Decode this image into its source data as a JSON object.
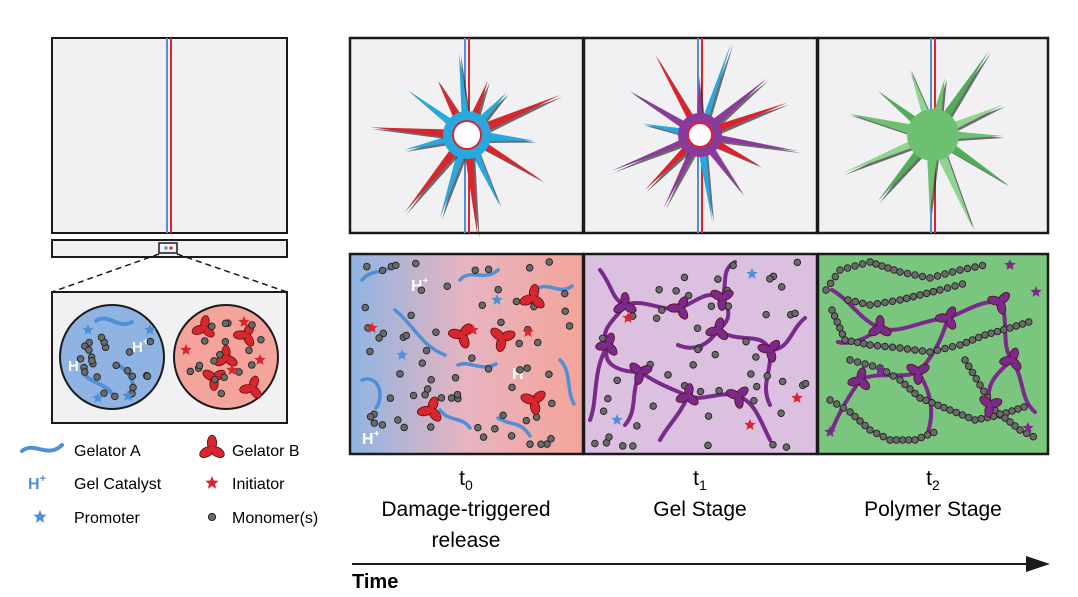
{
  "colors": {
    "blue": "#4f8fd6",
    "red": "#d8262e",
    "purple": "#7a2a8a",
    "green": "#7bc67e",
    "monomer": "#666666",
    "panel_border": "#1a1a1a"
  },
  "legend": {
    "gelator_a": "Gelator A",
    "gelator_b": "Gelator B",
    "catalyst_symbol": "H",
    "catalyst_sup": "+",
    "gel_catalyst": "Gel Catalyst",
    "initiator": "Initiator",
    "promoter": "Promoter",
    "monomers": "Monomer(s)"
  },
  "panel_labels": {
    "hplus": "H",
    "sup": "+"
  },
  "stages": [
    {
      "t": "t",
      "sub": "0",
      "line1": "Damage-triggered",
      "line2": "release"
    },
    {
      "t": "t",
      "sub": "1",
      "line1": "Gel Stage",
      "line2": ""
    },
    {
      "t": "t",
      "sub": "2",
      "line1": "Polymer Stage",
      "line2": ""
    }
  ],
  "axis": {
    "label": "Time"
  }
}
